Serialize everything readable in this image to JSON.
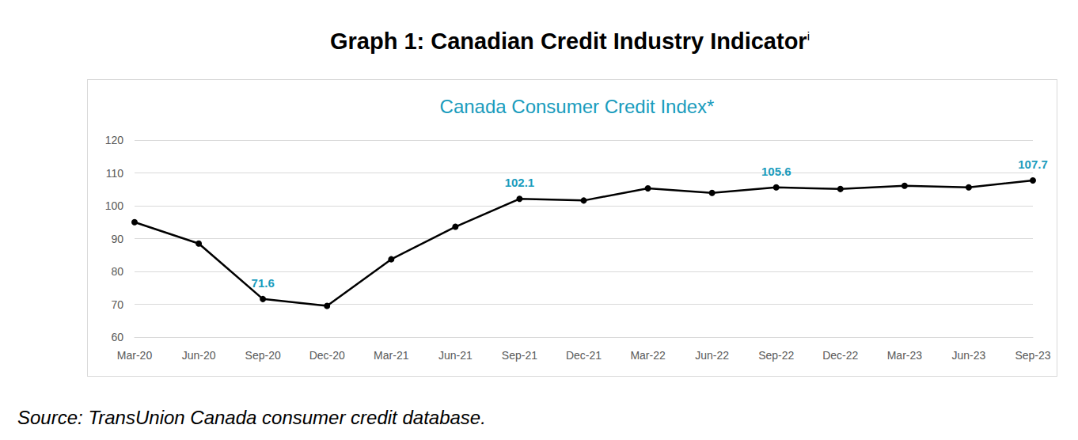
{
  "chart_data": {
    "type": "line",
    "title": "Graph 1: Canadian Credit Industry Indicator",
    "title_note": "i",
    "subtitle": "Canada Consumer Credit Index*",
    "source": "Source: TransUnion Canada consumer credit database.",
    "categories": [
      "Mar-20",
      "Jun-20",
      "Sep-20",
      "Dec-20",
      "Mar-21",
      "Jun-21",
      "Sep-21",
      "Dec-21",
      "Mar-22",
      "Jun-22",
      "Sep-22",
      "Dec-22",
      "Mar-23",
      "Jun-23",
      "Sep-23"
    ],
    "values": [
      95.0,
      88.5,
      71.6,
      69.5,
      83.7,
      93.6,
      102.1,
      101.6,
      105.3,
      103.9,
      105.6,
      105.1,
      106.1,
      105.6,
      107.7
    ],
    "value_labels": [
      null,
      null,
      "71.6",
      null,
      null,
      null,
      "102.1",
      null,
      null,
      null,
      "105.6",
      null,
      null,
      null,
      "107.7"
    ],
    "data_labels": true,
    "color": "#000000",
    "marker": "circle",
    "ylim": [
      60,
      120
    ],
    "yticks": [
      60,
      70,
      80,
      90,
      100,
      110,
      120
    ],
    "grid": true
  }
}
